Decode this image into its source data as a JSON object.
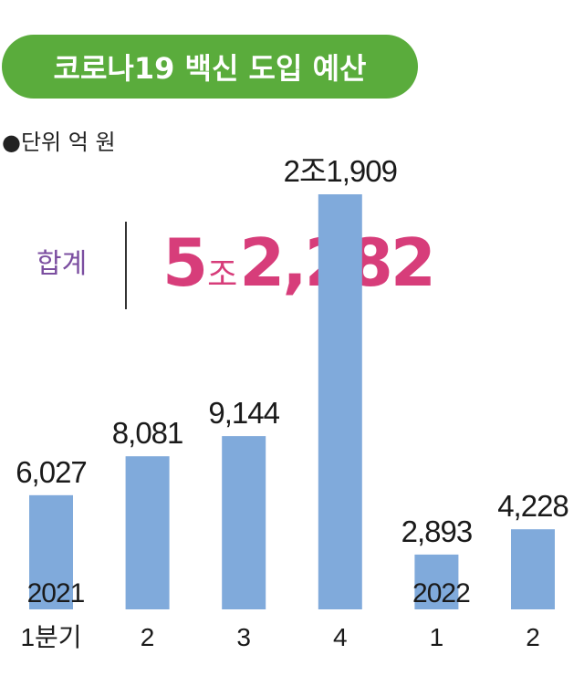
{
  "header": {
    "title": "코로나19 백신 도입 예산",
    "unit": "●단위 억 원"
  },
  "total": {
    "label": "합계",
    "number_part1": "5",
    "unit_text": "조",
    "number_part2": "2,282"
  },
  "colors": {
    "title_background": "#5aac3c",
    "bar": "#80aadb",
    "total_value": "#d73d7a",
    "total_label": "#7b4ea0"
  },
  "chart_data": {
    "type": "bar",
    "categories": [
      "1분기",
      "2",
      "3",
      "4",
      "1",
      "2"
    ],
    "values": [
      6027,
      8081,
      9144,
      21909,
      2893,
      4228
    ],
    "value_labels": [
      "6,027",
      "8,081",
      "9,144",
      "2조1,909",
      "2,893",
      "4,228"
    ],
    "year_labels": [
      {
        "text": "2021",
        "category_index": 0
      },
      {
        "text": "2022",
        "category_index": 4
      }
    ],
    "ylim": [
      0,
      21909
    ],
    "grid": false,
    "legend": "none",
    "xlabel": "",
    "ylabel": ""
  }
}
